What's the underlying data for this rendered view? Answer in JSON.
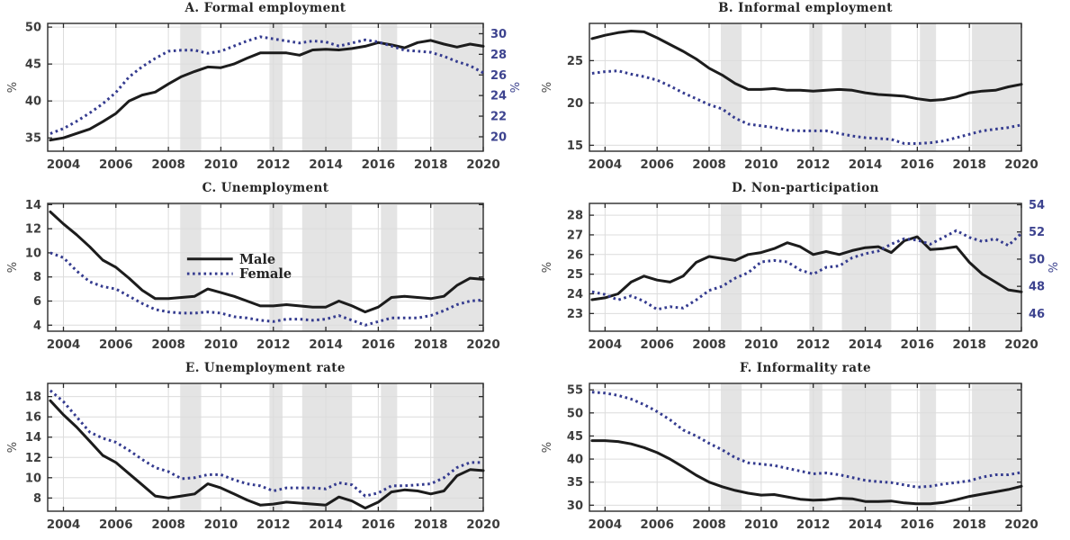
{
  "figure": {
    "background": "#ffffff",
    "colors": {
      "male_line": "#1c1c1c",
      "female_line": "#343b8f",
      "recession_band": "#e4e4e4",
      "gridline": "#dcdcdc",
      "axis": "#2a2a2a",
      "tick_label": "#3d3d3d",
      "right_tick_label": "#3d438f",
      "ylabel": "#4a4a4a",
      "title": "#262626"
    },
    "x": {
      "lim": [
        2003.4,
        2020
      ],
      "ticks": [
        2004,
        2006,
        2008,
        2010,
        2012,
        2014,
        2016,
        2018,
        2020
      ]
    },
    "recession_bands": [
      [
        2008.45,
        2009.25
      ],
      [
        2011.85,
        2012.35
      ],
      [
        2013.1,
        2015.0
      ],
      [
        2016.1,
        2016.72
      ],
      [
        2018.1,
        2020.0
      ]
    ],
    "legend": {
      "entries": [
        {
          "label": "Male",
          "style": "solid"
        },
        {
          "label": "Female",
          "style": "dotted"
        }
      ]
    },
    "x_values": [
      2003.5,
      2004,
      2004.5,
      2005,
      2005.5,
      2006,
      2006.5,
      2007,
      2007.5,
      2008,
      2008.5,
      2009,
      2009.5,
      2010,
      2010.5,
      2011,
      2011.5,
      2012,
      2012.5,
      2013,
      2013.5,
      2014,
      2014.5,
      2015,
      2015.5,
      2016,
      2016.5,
      2017,
      2017.5,
      2018,
      2018.5,
      2019,
      2019.5,
      2020
    ]
  },
  "chart_data": [
    {
      "id": "A",
      "type": "line",
      "title": "A. Formal employment",
      "ylabel_left": "%",
      "ylabel_right": "%",
      "left_axis": {
        "lim": [
          33.2,
          50.5
        ],
        "ticks": [
          35,
          40,
          45,
          50
        ]
      },
      "right_axis": {
        "lim": [
          18.6,
          31.0
        ],
        "ticks": [
          20,
          22,
          24,
          26,
          28,
          30
        ],
        "labeled": true
      },
      "legend": false,
      "series": [
        {
          "name": "Male",
          "axis": "left",
          "style": "solid",
          "values": [
            34.7,
            35.0,
            35.6,
            36.2,
            37.2,
            38.3,
            40.0,
            40.8,
            41.2,
            42.3,
            43.3,
            44.0,
            44.6,
            44.5,
            45.0,
            45.8,
            46.5,
            46.5,
            46.5,
            46.2,
            46.9,
            47.0,
            46.9,
            47.1,
            47.4,
            47.9,
            47.6,
            47.2,
            47.9,
            48.2,
            47.7,
            47.3,
            47.7,
            47.4
          ]
        },
        {
          "name": "Female",
          "axis": "right",
          "style": "dotted",
          "values": [
            20.3,
            20.8,
            21.5,
            22.3,
            23.2,
            24.3,
            25.8,
            26.8,
            27.6,
            28.3,
            28.4,
            28.4,
            28.1,
            28.3,
            28.8,
            29.3,
            29.7,
            29.5,
            29.3,
            29.1,
            29.3,
            29.2,
            28.8,
            29.1,
            29.4,
            29.2,
            28.8,
            28.4,
            28.3,
            28.2,
            27.8,
            27.3,
            26.9,
            26.2
          ]
        }
      ]
    },
    {
      "id": "B",
      "type": "line",
      "title": "B. Informal employment",
      "ylabel_left": "%",
      "ylabel_right": null,
      "left_axis": {
        "lim": [
          14.3,
          29.4
        ],
        "ticks": [
          15,
          20,
          25
        ]
      },
      "right_axis": null,
      "legend": false,
      "series": [
        {
          "name": "Male",
          "axis": "left",
          "style": "solid",
          "values": [
            27.6,
            28.0,
            28.3,
            28.5,
            28.4,
            27.7,
            26.9,
            26.1,
            25.2,
            24.1,
            23.3,
            22.3,
            21.6,
            21.6,
            21.7,
            21.5,
            21.5,
            21.4,
            21.5,
            21.6,
            21.5,
            21.2,
            21.0,
            20.9,
            20.8,
            20.5,
            20.3,
            20.4,
            20.7,
            21.2,
            21.4,
            21.5,
            21.9,
            22.2
          ]
        },
        {
          "name": "Female",
          "axis": "left",
          "style": "dotted",
          "values": [
            23.5,
            23.7,
            23.8,
            23.4,
            23.1,
            22.7,
            22.0,
            21.2,
            20.5,
            19.8,
            19.3,
            18.2,
            17.5,
            17.3,
            17.1,
            16.8,
            16.7,
            16.7,
            16.7,
            16.4,
            16.1,
            15.9,
            15.8,
            15.7,
            15.2,
            15.2,
            15.3,
            15.5,
            15.9,
            16.3,
            16.7,
            16.9,
            17.1,
            17.4
          ]
        }
      ]
    },
    {
      "id": "C",
      "type": "line",
      "title": "C. Unemployment",
      "ylabel_left": "%",
      "ylabel_right": null,
      "left_axis": {
        "lim": [
          3.5,
          14.1
        ],
        "ticks": [
          4,
          6,
          8,
          10,
          12,
          14
        ]
      },
      "right_axis": null,
      "legend": true,
      "series": [
        {
          "name": "Male",
          "axis": "left",
          "style": "solid",
          "values": [
            13.4,
            12.4,
            11.5,
            10.5,
            9.4,
            8.8,
            7.9,
            6.9,
            6.2,
            6.2,
            6.3,
            6.4,
            7.0,
            6.7,
            6.4,
            6.0,
            5.6,
            5.6,
            5.7,
            5.6,
            5.5,
            5.5,
            6.0,
            5.6,
            5.1,
            5.5,
            6.3,
            6.4,
            6.3,
            6.2,
            6.4,
            7.3,
            7.9,
            7.8
          ]
        },
        {
          "name": "Female",
          "axis": "left",
          "style": "dotted",
          "values": [
            10.0,
            9.6,
            8.5,
            7.6,
            7.2,
            7.0,
            6.4,
            5.8,
            5.3,
            5.1,
            5.0,
            5.0,
            5.1,
            5.0,
            4.7,
            4.6,
            4.4,
            4.3,
            4.5,
            4.5,
            4.4,
            4.5,
            4.8,
            4.4,
            4.0,
            4.3,
            4.6,
            4.6,
            4.6,
            4.8,
            5.2,
            5.7,
            6.0,
            6.1
          ]
        }
      ]
    },
    {
      "id": "D",
      "type": "line",
      "title": "D. Non-participation",
      "ylabel_left": "%",
      "ylabel_right": "%",
      "left_axis": {
        "lim": [
          22.1,
          28.6
        ],
        "ticks": [
          23,
          24,
          25,
          26,
          27,
          28
        ]
      },
      "right_axis": {
        "lim": [
          44.7,
          54.1
        ],
        "ticks": [
          46,
          48,
          50,
          52,
          54
        ],
        "labeled": true
      },
      "legend": false,
      "series": [
        {
          "name": "Male",
          "axis": "left",
          "style": "solid",
          "values": [
            23.7,
            23.8,
            24.0,
            24.6,
            24.9,
            24.7,
            24.6,
            24.9,
            25.6,
            25.9,
            25.8,
            25.7,
            26.0,
            26.1,
            26.3,
            26.6,
            26.4,
            26.0,
            26.15,
            26.0,
            26.2,
            26.35,
            26.4,
            26.1,
            26.7,
            26.9,
            26.25,
            26.3,
            26.4,
            25.6,
            25.0,
            24.6,
            24.2,
            24.1
          ]
        },
        {
          "name": "Female",
          "axis": "right",
          "style": "dotted",
          "values": [
            47.6,
            47.4,
            47.0,
            47.3,
            46.9,
            46.3,
            46.5,
            46.4,
            47.0,
            47.7,
            48.0,
            48.6,
            49.0,
            49.8,
            49.9,
            49.8,
            49.2,
            48.9,
            49.4,
            49.5,
            50.1,
            50.4,
            50.6,
            51.1,
            51.5,
            51.4,
            51.1,
            51.6,
            52.1,
            51.6,
            51.3,
            51.5,
            51.0,
            51.9
          ]
        }
      ]
    },
    {
      "id": "E",
      "type": "line",
      "title": "E. Unemployment rate",
      "ylabel_left": "%",
      "ylabel_right": null,
      "left_axis": {
        "lim": [
          6.7,
          19.3
        ],
        "ticks": [
          8,
          10,
          12,
          14,
          16,
          18
        ]
      },
      "right_axis": null,
      "legend": false,
      "series": [
        {
          "name": "Male",
          "axis": "left",
          "style": "solid",
          "values": [
            17.6,
            16.2,
            15.0,
            13.6,
            12.2,
            11.5,
            10.4,
            9.3,
            8.2,
            8.0,
            8.2,
            8.4,
            9.4,
            9.0,
            8.4,
            7.8,
            7.3,
            7.4,
            7.6,
            7.5,
            7.4,
            7.3,
            8.1,
            7.7,
            7.0,
            7.6,
            8.6,
            8.8,
            8.7,
            8.4,
            8.7,
            10.2,
            10.8,
            10.7
          ]
        },
        {
          "name": "Female",
          "axis": "left",
          "style": "dotted",
          "values": [
            18.6,
            17.5,
            16.0,
            14.5,
            13.9,
            13.5,
            12.7,
            11.8,
            11.0,
            10.6,
            9.9,
            10.0,
            10.3,
            10.3,
            9.8,
            9.4,
            9.2,
            8.7,
            9.0,
            9.0,
            9.0,
            8.9,
            9.5,
            9.3,
            8.2,
            8.5,
            9.2,
            9.2,
            9.3,
            9.4,
            10.0,
            11.0,
            11.5,
            11.5
          ]
        }
      ]
    },
    {
      "id": "F",
      "type": "line",
      "title": "F. Informality rate",
      "ylabel_left": "%",
      "ylabel_right": null,
      "left_axis": {
        "lim": [
          28.7,
          56.4
        ],
        "ticks": [
          30,
          35,
          40,
          45,
          50,
          55
        ]
      },
      "right_axis": null,
      "legend": false,
      "series": [
        {
          "name": "Male",
          "axis": "left",
          "style": "solid",
          "values": [
            44.0,
            44.0,
            43.8,
            43.3,
            42.5,
            41.4,
            40.0,
            38.3,
            36.5,
            35.0,
            34.0,
            33.2,
            32.6,
            32.2,
            32.3,
            31.8,
            31.3,
            31.1,
            31.2,
            31.5,
            31.4,
            30.8,
            30.8,
            30.9,
            30.5,
            30.3,
            30.3,
            30.6,
            31.2,
            31.9,
            32.4,
            32.9,
            33.4,
            34.1
          ]
        },
        {
          "name": "Female",
          "axis": "left",
          "style": "dotted",
          "values": [
            54.5,
            54.3,
            53.8,
            53.0,
            51.8,
            50.3,
            48.5,
            46.3,
            45.0,
            43.4,
            42.0,
            40.3,
            39.2,
            38.9,
            38.6,
            38.0,
            37.4,
            36.8,
            37.0,
            36.6,
            36.0,
            35.4,
            35.1,
            34.9,
            34.4,
            33.9,
            34.1,
            34.6,
            34.9,
            35.3,
            36.1,
            36.6,
            36.6,
            37.1
          ]
        }
      ]
    }
  ]
}
